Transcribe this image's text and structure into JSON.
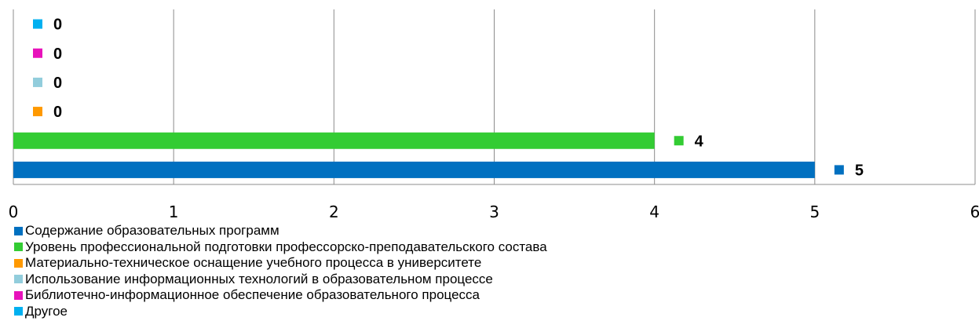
{
  "chart_data": {
    "type": "bar",
    "orientation": "horizontal",
    "xlim": [
      0,
      6
    ],
    "x_ticks": [
      0,
      1,
      2,
      3,
      4,
      5,
      6
    ],
    "grid": "vertical",
    "legend_position": "bottom-left",
    "series": [
      {
        "name": "Содержание образовательных программ",
        "value": 5,
        "color": "#0070C0"
      },
      {
        "name": "Уровень профессиональной подготовки профессорско-преподавательского состава",
        "value": 4,
        "color": "#33CC33"
      },
      {
        "name": "Материально-техническое оснащение учебного процесса в университете",
        "value": 0,
        "color": "#FF9900"
      },
      {
        "name": "Использование информационных технологий в образовательном процессе",
        "value": 0,
        "color": "#92CDDC"
      },
      {
        "name": "Библиотечно-информационное обеспечение образовательного процесса",
        "value": 0,
        "color": "#E812BB"
      },
      {
        "name": "Другое",
        "value": 0,
        "color": "#00B0F0"
      }
    ]
  }
}
